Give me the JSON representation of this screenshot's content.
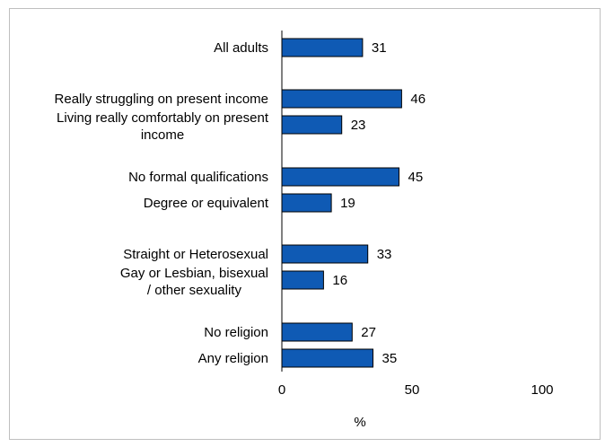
{
  "chart_data": {
    "type": "bar",
    "orientation": "horizontal",
    "categories": [
      [
        "All adults"
      ],
      [
        "Really struggling on present income"
      ],
      [
        "Living really comfortably on present",
        "income"
      ],
      [
        "No formal qualifications"
      ],
      [
        "Degree or equivalent"
      ],
      [
        "Straight or Heterosexual"
      ],
      [
        "Gay or Lesbian, bisexual",
        "/ other sexuality"
      ],
      [
        "No religion"
      ],
      [
        "Any religion"
      ]
    ],
    "values": [
      31,
      46,
      23,
      45,
      19,
      33,
      16,
      27,
      35
    ],
    "data_labels": [
      "31",
      "46",
      "23",
      "45",
      "19",
      "33",
      "16",
      "27",
      "35"
    ],
    "xlim": [
      0,
      100
    ],
    "xticks": [
      0,
      50,
      100
    ],
    "xtick_labels": [
      "0",
      "50",
      "100"
    ],
    "xlabel": "%",
    "ylabel": "",
    "title": "",
    "bar_color": "#0f5ab4",
    "grid": false
  }
}
